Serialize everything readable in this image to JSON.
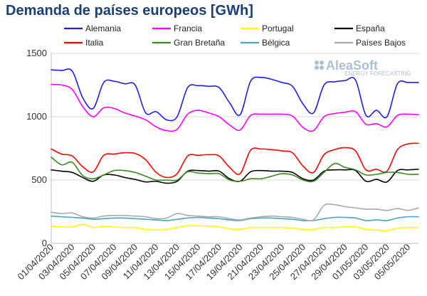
{
  "title": "Demanda de países europeos [GWh]",
  "watermark": {
    "brand": "AleaSoft",
    "tagline": "ENERGY FORECASTING"
  },
  "chart_data": {
    "type": "line",
    "title": "Demanda de países europeos [GWh]",
    "ylim": [
      0,
      1500
    ],
    "yticks": [
      0,
      500,
      1000,
      1500
    ],
    "grid": true,
    "legend_position": "top",
    "x": [
      "01/04/2020",
      "02/04/2020",
      "03/04/2020",
      "04/04/2020",
      "05/04/2020",
      "06/04/2020",
      "07/04/2020",
      "08/04/2020",
      "09/04/2020",
      "10/04/2020",
      "11/04/2020",
      "12/04/2020",
      "13/04/2020",
      "14/04/2020",
      "15/04/2020",
      "16/04/2020",
      "17/04/2020",
      "18/04/2020",
      "19/04/2020",
      "20/04/2020",
      "21/04/2020",
      "22/04/2020",
      "23/04/2020",
      "24/04/2020",
      "25/04/2020",
      "26/04/2020",
      "27/04/2020",
      "28/04/2020",
      "29/04/2020",
      "30/04/2020",
      "01/05/2020",
      "02/05/2020",
      "03/05/2020",
      "04/05/2020",
      "05/05/2020",
      "06/05/2020"
    ],
    "xtick_labels": [
      "01/04/2020",
      "03/04/2020",
      "05/04/2020",
      "07/04/2020",
      "09/04/2020",
      "11/04/2020",
      "13/04/2020",
      "15/04/2020",
      "17/04/2020",
      "19/04/2020",
      "21/04/2020",
      "23/04/2020",
      "25/04/2020",
      "27/04/2020",
      "29/04/2020",
      "01/05/2020",
      "03/05/2020",
      "05/05/2020"
    ],
    "series": [
      {
        "name": "Alemania",
        "color": "#1f1fe6",
        "values": [
          1370,
          1365,
          1360,
          1150,
          1065,
          1270,
          1280,
          1260,
          1250,
          1030,
          1040,
          975,
          1000,
          1230,
          1245,
          1240,
          1230,
          1110,
          1015,
          1280,
          1310,
          1295,
          1270,
          1240,
          1100,
          1030,
          1250,
          1275,
          1285,
          1290,
          1010,
          1050,
          1000,
          1260,
          1270,
          1270
        ]
      },
      {
        "name": "Francia",
        "color": "#ff00ff",
        "values": [
          1255,
          1250,
          1215,
          1080,
          1000,
          1070,
          1065,
          1030,
          1005,
          975,
          920,
          890,
          900,
          1020,
          1050,
          1030,
          1000,
          935,
          895,
          1010,
          1020,
          1020,
          1020,
          1005,
          915,
          890,
          1000,
          1025,
          1035,
          1040,
          940,
          945,
          920,
          1010,
          1020,
          1015
        ]
      },
      {
        "name": "Portugal",
        "color": "#ffff00",
        "values": [
          135,
          130,
          130,
          150,
          125,
          135,
          130,
          125,
          125,
          110,
          105,
          110,
          125,
          140,
          140,
          135,
          130,
          115,
          110,
          125,
          125,
          125,
          125,
          120,
          110,
          110,
          125,
          125,
          130,
          130,
          110,
          105,
          100,
          120,
          125,
          125
        ]
      },
      {
        "name": "España",
        "color": "#000000",
        "values": [
          580,
          570,
          560,
          520,
          490,
          540,
          540,
          520,
          505,
          485,
          490,
          475,
          490,
          570,
          575,
          570,
          570,
          510,
          490,
          565,
          575,
          570,
          570,
          560,
          510,
          500,
          570,
          580,
          580,
          575,
          490,
          505,
          485,
          575,
          580,
          585
        ]
      },
      {
        "name": "Italia",
        "color": "#ff0000",
        "values": [
          745,
          705,
          690,
          605,
          565,
          695,
          705,
          715,
          710,
          660,
          560,
          520,
          550,
          690,
          695,
          700,
          690,
          600,
          550,
          735,
          745,
          740,
          730,
          715,
          610,
          560,
          700,
          740,
          755,
          730,
          580,
          585,
          570,
          740,
          785,
          790
        ]
      },
      {
        "name": "Gran Bretaña",
        "color": "#3a8a1f",
        "values": [
          680,
          620,
          640,
          535,
          510,
          540,
          575,
          575,
          560,
          530,
          500,
          500,
          500,
          565,
          555,
          550,
          550,
          500,
          490,
          510,
          510,
          530,
          550,
          540,
          500,
          490,
          560,
          630,
          600,
          580,
          540,
          545,
          560,
          560,
          545,
          545
        ]
      },
      {
        "name": "Bélgica",
        "color": "#4ba3c3",
        "values": [
          215,
          210,
          205,
          200,
          190,
          195,
          200,
          200,
          195,
          190,
          185,
          180,
          190,
          200,
          205,
          200,
          195,
          185,
          180,
          195,
          200,
          200,
          195,
          190,
          180,
          180,
          195,
          205,
          205,
          200,
          180,
          185,
          180,
          200,
          210,
          210
        ]
      },
      {
        "name": "Países Bajos",
        "color": "#aaaaaa",
        "values": [
          245,
          235,
          240,
          210,
          200,
          215,
          220,
          220,
          215,
          210,
          195,
          200,
          235,
          220,
          215,
          210,
          210,
          195,
          185,
          200,
          210,
          215,
          210,
          205,
          190,
          185,
          300,
          305,
          290,
          280,
          270,
          270,
          260,
          275,
          260,
          280
        ]
      }
    ]
  }
}
